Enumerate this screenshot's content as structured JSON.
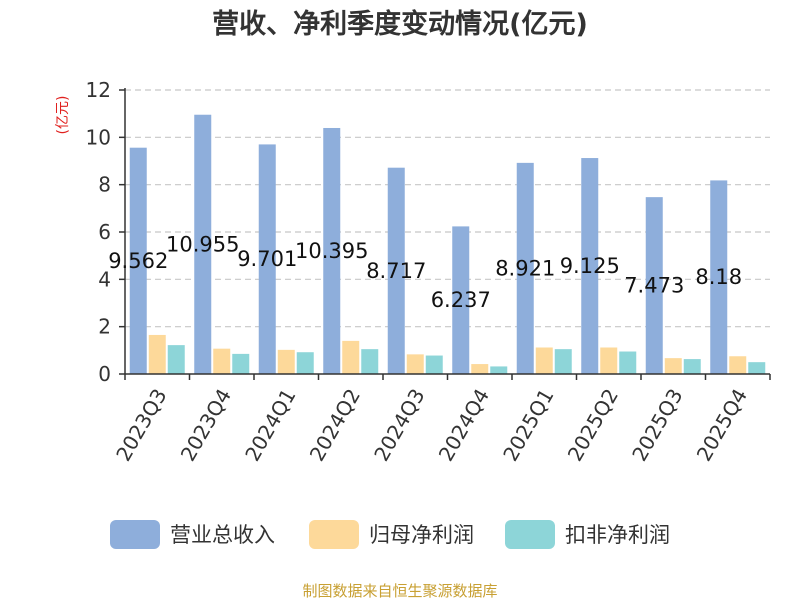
{
  "chart_data": {
    "type": "bar",
    "title": "营收、净利季度变动情况(亿元)",
    "ylabel": "(亿元)",
    "xlabel": "",
    "ylim": [
      0,
      12
    ],
    "yticks": [
      0,
      2,
      4,
      6,
      8,
      10,
      12
    ],
    "grid": true,
    "legend_position": "bottom",
    "categories": [
      "2023Q3",
      "2023Q4",
      "2024Q1",
      "2024Q2",
      "2024Q3",
      "2024Q4",
      "2025Q1",
      "2025Q2",
      "2025Q3",
      "2025Q4"
    ],
    "series": [
      {
        "name": "营业总收入",
        "color": "#8eaedb",
        "values": [
          9.562,
          10.955,
          9.701,
          10.395,
          8.717,
          6.237,
          8.921,
          9.125,
          7.473,
          8.18
        ],
        "labels": [
          "9.562",
          "10.955",
          "9.701",
          "10.395",
          "8.717",
          "6.237",
          "8.921",
          "9.125",
          "7.473",
          "8.18"
        ]
      },
      {
        "name": "归母净利润",
        "color": "#fdd99a",
        "values": [
          1.65,
          1.07,
          1.02,
          1.4,
          0.83,
          0.42,
          1.12,
          1.12,
          0.67,
          0.75
        ]
      },
      {
        "name": "扣非净利润",
        "color": "#8dd5d8",
        "values": [
          1.22,
          0.85,
          0.92,
          1.05,
          0.78,
          0.32,
          1.05,
          0.95,
          0.63,
          0.5
        ]
      }
    ],
    "source": "制图数据来自恒生聚源数据库"
  }
}
